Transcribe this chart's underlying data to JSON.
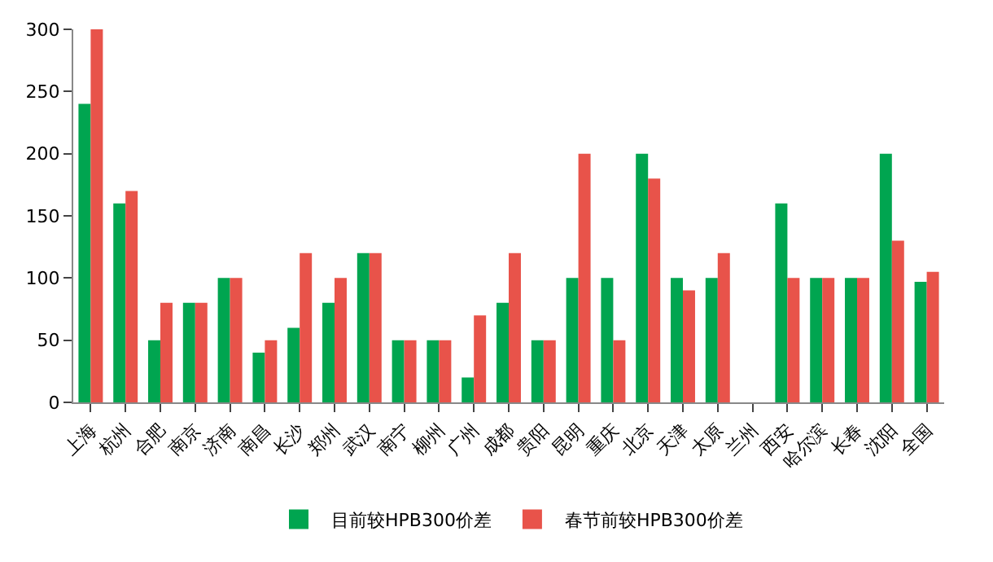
{
  "chart_data": {
    "type": "bar",
    "categories": [
      "上海",
      "杭州",
      "合肥",
      "南京",
      "济南",
      "南昌",
      "长沙",
      "郑州",
      "武汉",
      "南宁",
      "柳州",
      "广州",
      "成都",
      "贵阳",
      "昆明",
      "重庆",
      "北京",
      "天津",
      "太原",
      "兰州",
      "西安",
      "哈尔滨",
      "长春",
      "沈阳",
      "全国"
    ],
    "series": [
      {
        "name": "目前较HPB300价差",
        "color": "#00a550",
        "values": [
          240,
          160,
          50,
          80,
          100,
          40,
          60,
          80,
          120,
          50,
          50,
          20,
          80,
          50,
          100,
          100,
          200,
          100,
          100,
          0,
          160,
          100,
          100,
          200,
          97
        ]
      },
      {
        "name": "春节前较HPB300价差",
        "color": "#e8534a",
        "values": [
          300,
          170,
          80,
          80,
          100,
          50,
          120,
          100,
          120,
          50,
          50,
          70,
          120,
          50,
          200,
          50,
          180,
          90,
          120,
          0,
          100,
          100,
          100,
          130,
          105
        ]
      }
    ],
    "ylim": [
      0,
      300
    ],
    "yticks": [
      0,
      50,
      100,
      150,
      200,
      250,
      300
    ],
    "grid": false,
    "legend": "bottom"
  }
}
